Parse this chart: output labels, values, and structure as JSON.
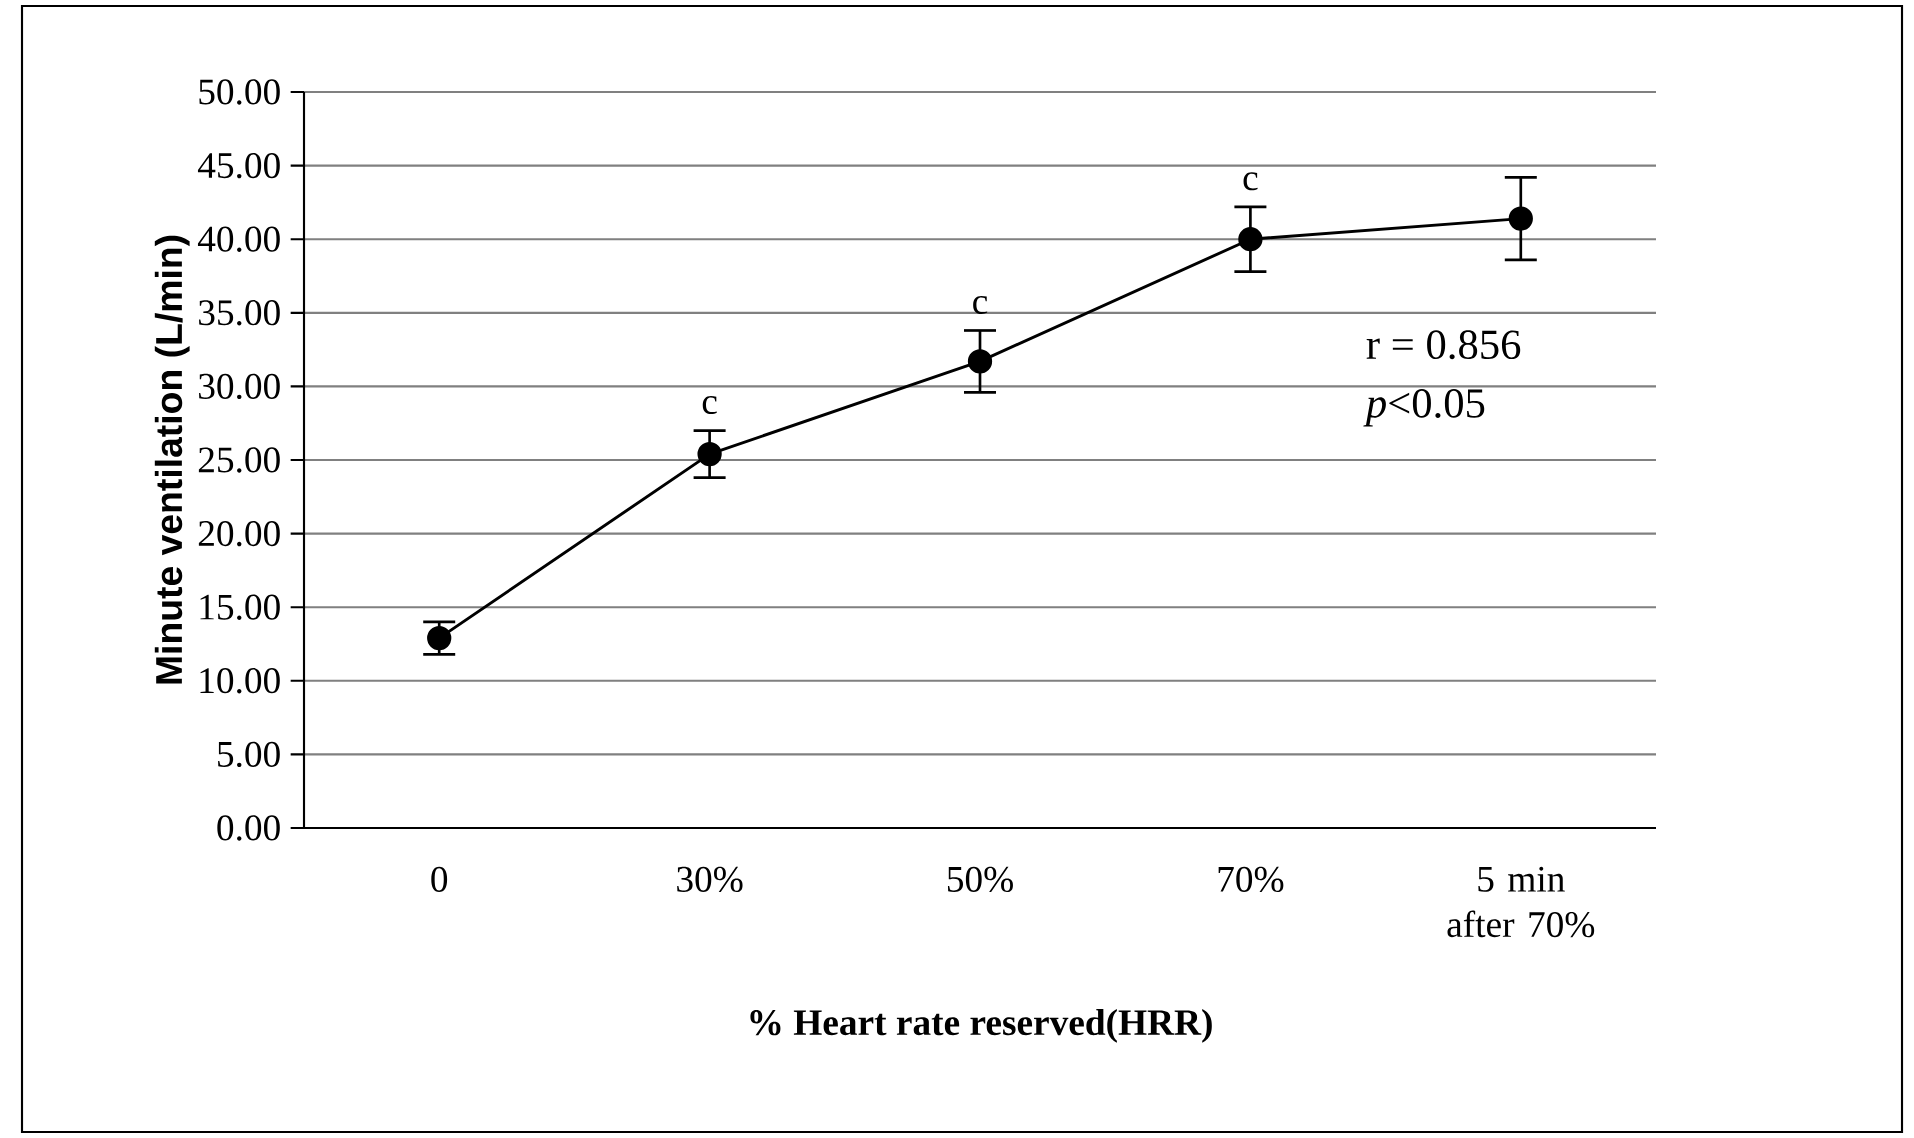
{
  "chart_data": {
    "type": "line",
    "xlabel": "% Heart rate reserved(HRR)",
    "ylabel": "Minute ventilation (L/min)",
    "categories": [
      "0",
      "30%",
      "50%",
      "70%",
      "5 min after 70%"
    ],
    "values": [
      12.9,
      25.4,
      31.7,
      40.0,
      41.4
    ],
    "errors": [
      1.1,
      1.6,
      2.1,
      2.2,
      2.8
    ],
    "color": "#000000",
    "marker": "circle",
    "line_style": "solid",
    "grid": "y",
    "ylim": [
      0,
      50
    ],
    "yticks": [
      {
        "value": 0,
        "label": "0.00"
      },
      {
        "value": 5,
        "label": "5.00"
      },
      {
        "value": 10,
        "label": "10.00"
      },
      {
        "value": 15,
        "label": "15.00"
      },
      {
        "value": 20,
        "label": "20.00"
      },
      {
        "value": 25,
        "label": "25.00"
      },
      {
        "value": 30,
        "label": "30.00"
      },
      {
        "value": 35,
        "label": "35.00"
      },
      {
        "value": 40,
        "label": "40.00"
      },
      {
        "value": 45,
        "label": "45.00"
      },
      {
        "value": 50,
        "label": "50.00"
      }
    ],
    "annotations": [
      {
        "text": "c",
        "x": "30%",
        "y": 25.4
      },
      {
        "text": "c",
        "x": "50%",
        "y": 31.7
      },
      {
        "text": "c",
        "x": "70%",
        "y": 40.0
      },
      "r = 0.856",
      "*p*<0.05"
    ]
  }
}
